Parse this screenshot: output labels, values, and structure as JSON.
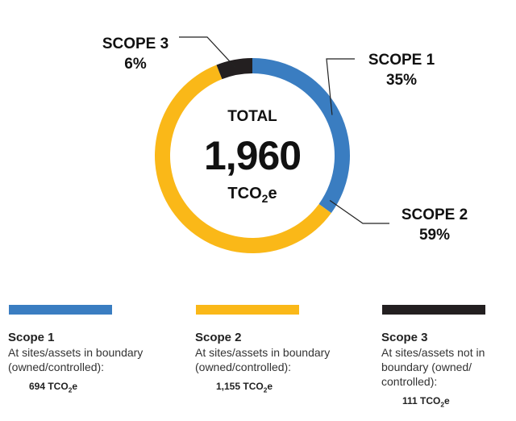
{
  "chart_data": {
    "type": "pie",
    "subtype": "donut",
    "total_label": "TOTAL",
    "total_value": "1,960",
    "total_unit": "TCO2e",
    "series": [
      {
        "name": "SCOPE 1",
        "percent": 35,
        "percent_label": "35%",
        "color": "#3a7dc1",
        "title": "Scope 1",
        "description": "At sites/assets in boundary (owned/controlled):",
        "value": 694,
        "value_label": "694 TCO2e"
      },
      {
        "name": "SCOPE 2",
        "percent": 59,
        "percent_label": "59%",
        "color": "#fab818",
        "title": "Scope 2",
        "description": "At sites/assets in boundary (owned/controlled):",
        "value": 1155,
        "value_label": "1,155 TCO2e"
      },
      {
        "name": "SCOPE 3",
        "percent": 6,
        "percent_label": "6%",
        "color": "#231f20",
        "title": "Scope 3",
        "description": "At sites/assets not in boundary (owned/ controlled):",
        "value": 111,
        "value_label": "111 TCO2e"
      }
    ]
  }
}
